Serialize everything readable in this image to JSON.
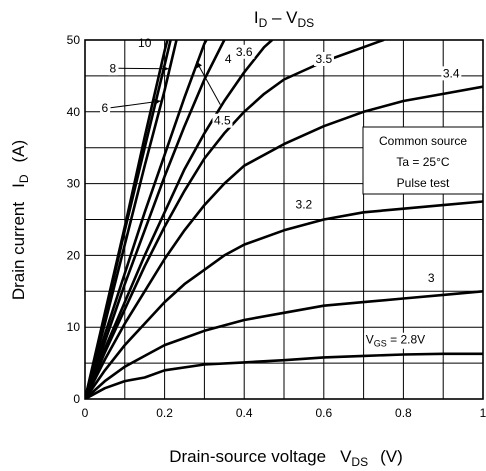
{
  "chart_data": {
    "type": "line",
    "title": {
      "main": "I",
      "main_sub": "D",
      "sep": " – V",
      "sep_sub": "DS"
    },
    "xlabel": {
      "main": "Drain-source voltage",
      "sym": "V",
      "sym_sub": "DS",
      "unit": "(V)"
    },
    "ylabel": {
      "main": "Drain current",
      "sym": "I",
      "sym_sub": "D",
      "unit": "(A)"
    },
    "xlim": [
      0,
      1
    ],
    "ylim": [
      0,
      50
    ],
    "x_ticks": [
      0,
      0.2,
      0.4,
      0.6,
      0.8,
      1
    ],
    "y_ticks": [
      0,
      10,
      20,
      30,
      40,
      50
    ],
    "x_tick_labels": [
      "0",
      "0.2",
      "0.4",
      "0.6",
      "0.8",
      "1"
    ],
    "y_tick_labels": [
      "0",
      "10",
      "20",
      "30",
      "40",
      "50"
    ],
    "grid": true,
    "legend_position": "right",
    "legend_lines": [
      "Common source",
      "Ta = 25°C",
      "Pulse test"
    ],
    "series": [
      {
        "vgs": "10",
        "points": [
          [
            0,
            0
          ],
          [
            0.05,
            12
          ],
          [
            0.1,
            24
          ],
          [
            0.15,
            36.5
          ],
          [
            0.2,
            48.5
          ],
          [
            0.207,
            50
          ]
        ]
      },
      {
        "vgs": "8",
        "points": [
          [
            0,
            0
          ],
          [
            0.05,
            11.5
          ],
          [
            0.1,
            23.5
          ],
          [
            0.15,
            35
          ],
          [
            0.2,
            46.5
          ],
          [
            0.215,
            50
          ]
        ]
      },
      {
        "vgs": "6",
        "points": [
          [
            0,
            0
          ],
          [
            0.05,
            10.5
          ],
          [
            0.1,
            21.5
          ],
          [
            0.15,
            32.5
          ],
          [
            0.2,
            43
          ],
          [
            0.23,
            50
          ]
        ]
      },
      {
        "vgs": "4.5",
        "points": [
          [
            0,
            0
          ],
          [
            0.05,
            9
          ],
          [
            0.1,
            17.5
          ],
          [
            0.15,
            26
          ],
          [
            0.2,
            34
          ],
          [
            0.25,
            42
          ],
          [
            0.3,
            49.5
          ],
          [
            0.305,
            50
          ]
        ]
      },
      {
        "vgs": "4",
        "points": [
          [
            0,
            0
          ],
          [
            0.05,
            8
          ],
          [
            0.1,
            16
          ],
          [
            0.15,
            23.5
          ],
          [
            0.2,
            31
          ],
          [
            0.25,
            38
          ],
          [
            0.3,
            44.5
          ],
          [
            0.35,
            50
          ]
        ]
      },
      {
        "vgs": "3.6",
        "points": [
          [
            0,
            0
          ],
          [
            0.05,
            7
          ],
          [
            0.1,
            13.5
          ],
          [
            0.15,
            20
          ],
          [
            0.2,
            26
          ],
          [
            0.25,
            32
          ],
          [
            0.3,
            37
          ],
          [
            0.35,
            41.5
          ],
          [
            0.4,
            45.5
          ],
          [
            0.45,
            49
          ],
          [
            0.47,
            50
          ]
        ]
      },
      {
        "vgs": "3.5",
        "points": [
          [
            0,
            0
          ],
          [
            0.05,
            6.5
          ],
          [
            0.1,
            12.5
          ],
          [
            0.15,
            18.5
          ],
          [
            0.2,
            24
          ],
          [
            0.25,
            29
          ],
          [
            0.3,
            33.5
          ],
          [
            0.35,
            37
          ],
          [
            0.4,
            40
          ],
          [
            0.45,
            42.5
          ],
          [
            0.5,
            44.5
          ],
          [
            0.6,
            47
          ],
          [
            0.7,
            49
          ],
          [
            0.75,
            50
          ]
        ]
      },
      {
        "vgs": "3.4",
        "points": [
          [
            0,
            0
          ],
          [
            0.05,
            5.5
          ],
          [
            0.1,
            10.5
          ],
          [
            0.15,
            15
          ],
          [
            0.2,
            19.5
          ],
          [
            0.25,
            23.5
          ],
          [
            0.3,
            27
          ],
          [
            0.35,
            30
          ],
          [
            0.4,
            32.5
          ],
          [
            0.5,
            35.5
          ],
          [
            0.6,
            38
          ],
          [
            0.7,
            40
          ],
          [
            0.8,
            41.5
          ],
          [
            0.9,
            42.5
          ],
          [
            1,
            43.5
          ]
        ]
      },
      {
        "vgs": "3.2",
        "points": [
          [
            0,
            0
          ],
          [
            0.05,
            4
          ],
          [
            0.1,
            7.5
          ],
          [
            0.15,
            10.5
          ],
          [
            0.2,
            13.5
          ],
          [
            0.25,
            16
          ],
          [
            0.3,
            18
          ],
          [
            0.35,
            20
          ],
          [
            0.4,
            21.5
          ],
          [
            0.5,
            23.5
          ],
          [
            0.6,
            25
          ],
          [
            0.7,
            26
          ],
          [
            0.8,
            26.5
          ],
          [
            0.9,
            27
          ],
          [
            1,
            27.5
          ]
        ]
      },
      {
        "vgs": "3",
        "points": [
          [
            0,
            0
          ],
          [
            0.05,
            2.5
          ],
          [
            0.1,
            4.5
          ],
          [
            0.15,
            6
          ],
          [
            0.2,
            7.5
          ],
          [
            0.25,
            8.5
          ],
          [
            0.3,
            9.5
          ],
          [
            0.4,
            11
          ],
          [
            0.5,
            12
          ],
          [
            0.6,
            13
          ],
          [
            0.7,
            13.5
          ],
          [
            0.8,
            14
          ],
          [
            0.9,
            14.5
          ],
          [
            1,
            15
          ]
        ]
      },
      {
        "vgs": "2.8",
        "points": [
          [
            0,
            0
          ],
          [
            0.05,
            1.5
          ],
          [
            0.1,
            2.5
          ],
          [
            0.15,
            3
          ],
          [
            0.2,
            4
          ],
          [
            0.3,
            4.8
          ],
          [
            0.4,
            5.1
          ],
          [
            0.5,
            5.4
          ],
          [
            0.6,
            5.8
          ],
          [
            0.7,
            6
          ],
          [
            0.8,
            6.2
          ],
          [
            0.9,
            6.3
          ],
          [
            1,
            6.3
          ]
        ]
      }
    ],
    "curve_labels": [
      {
        "text": "10",
        "at": [
          0.15,
          49.0
        ]
      },
      {
        "text": "8",
        "at": [
          0.07,
          45.5
        ],
        "leader_to": [
          0.21,
          46.0
        ]
      },
      {
        "text": "6",
        "at": [
          0.05,
          40.0
        ],
        "leader_to": [
          0.19,
          41.5
        ]
      },
      {
        "text": "4",
        "at": [
          0.36,
          46.8
        ]
      },
      {
        "text": "4.5",
        "at": [
          0.345,
          38.2
        ],
        "leader_from": [
          0.34,
          41.0
        ],
        "leader_to": [
          0.28,
          47.0
        ]
      },
      {
        "text": "3.6",
        "at": [
          0.4,
          47.8
        ]
      },
      {
        "text": "3.5",
        "at": [
          0.6,
          46.8
        ]
      },
      {
        "text": "3.4",
        "at": [
          0.92,
          44.8
        ]
      },
      {
        "text": "3.2",
        "at": [
          0.55,
          26.5
        ]
      },
      {
        "text": "3",
        "at": [
          0.87,
          16.3
        ]
      },
      {
        "text_prefix": "V",
        "text_sub": "GS",
        "text_suffix": " = 2.8V",
        "at": [
          0.78,
          7.7
        ]
      }
    ]
  }
}
